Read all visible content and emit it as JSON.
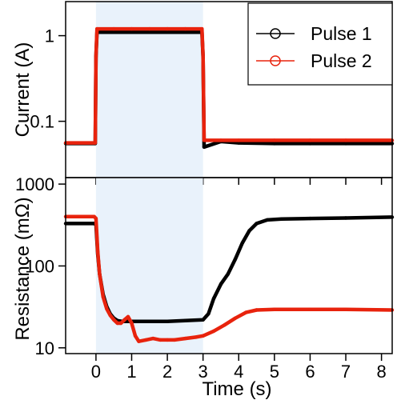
{
  "chart_data": [
    {
      "type": "line",
      "panel": "top",
      "xlabel": "",
      "ylabel": "Current (A)",
      "ylog": true,
      "ylim": [
        0.022,
        2.5
      ],
      "xlim": [
        -0.85,
        8.3
      ],
      "yticks": [
        {
          "v": 1,
          "label": "1"
        },
        {
          "v": 0.1,
          "label": "0.1"
        }
      ],
      "shaded_region": [
        0,
        3
      ],
      "shade_color": "#e9f2fb",
      "legend": {
        "position": "top-right",
        "entries": [
          "Pulse 1",
          "Pulse 2"
        ]
      },
      "series": [
        {
          "name": "Pulse 1",
          "color": "#000000",
          "points": [
            [
              -0.85,
              0.055
            ],
            [
              -0.02,
              0.055
            ],
            [
              0,
              0.57
            ],
            [
              0.03,
              1.1
            ],
            [
              0.5,
              1.1
            ],
            [
              1,
              1.1
            ],
            [
              1.5,
              1.1
            ],
            [
              2,
              1.1
            ],
            [
              2.5,
              1.1
            ],
            [
              2.97,
              1.1
            ],
            [
              3.0,
              0.57
            ],
            [
              3.03,
              0.05
            ],
            [
              3.5,
              0.058
            ],
            [
              4,
              0.056
            ],
            [
              5,
              0.055
            ],
            [
              6,
              0.055
            ],
            [
              7,
              0.055
            ],
            [
              8.3,
              0.055
            ]
          ]
        },
        {
          "name": "Pulse 2",
          "color": "#e8230d",
          "points": [
            [
              -0.85,
              0.056
            ],
            [
              -0.02,
              0.056
            ],
            [
              0,
              0.57
            ],
            [
              0.03,
              1.2
            ],
            [
              0.5,
              1.2
            ],
            [
              1,
              1.2
            ],
            [
              1.5,
              1.2
            ],
            [
              2,
              1.2
            ],
            [
              2.5,
              1.2
            ],
            [
              2.97,
              1.2
            ],
            [
              3.0,
              0.57
            ],
            [
              3.03,
              0.06
            ],
            [
              3.5,
              0.06
            ],
            [
              4,
              0.06
            ],
            [
              5,
              0.06
            ],
            [
              6,
              0.06
            ],
            [
              7,
              0.06
            ],
            [
              8.3,
              0.06
            ]
          ]
        }
      ]
    },
    {
      "type": "line",
      "panel": "bottom",
      "xlabel": "Time (s)",
      "ylabel": "Resistance (mΩ)",
      "ylog": true,
      "ylim": [
        8.5,
        1200
      ],
      "xlim": [
        -0.85,
        8.3
      ],
      "xticks": [
        0,
        1,
        2,
        3,
        4,
        5,
        6,
        7,
        8
      ],
      "yticks": [
        {
          "v": 1000,
          "label": "1000"
        },
        {
          "v": 100,
          "label": "100"
        },
        {
          "v": 10,
          "label": "10"
        }
      ],
      "shaded_region": [
        0,
        3
      ],
      "series": [
        {
          "name": "Pulse 1",
          "color": "#000000",
          "points": [
            [
              -0.85,
              330
            ],
            [
              -0.05,
              330
            ],
            [
              0,
              320
            ],
            [
              0.05,
              140
            ],
            [
              0.1,
              80
            ],
            [
              0.2,
              45
            ],
            [
              0.3,
              32
            ],
            [
              0.4,
              26
            ],
            [
              0.5,
              23
            ],
            [
              0.6,
              21.5
            ],
            [
              0.75,
              21
            ],
            [
              1,
              21
            ],
            [
              1.5,
              21
            ],
            [
              2,
              21
            ],
            [
              2.5,
              21.5
            ],
            [
              3,
              22
            ],
            [
              3.15,
              26
            ],
            [
              3.3,
              40
            ],
            [
              3.5,
              60
            ],
            [
              3.7,
              80
            ],
            [
              3.9,
              120
            ],
            [
              4.1,
              190
            ],
            [
              4.3,
              270
            ],
            [
              4.5,
              330
            ],
            [
              4.8,
              365
            ],
            [
              5.2,
              375
            ],
            [
              6,
              380
            ],
            [
              7,
              385
            ],
            [
              8.3,
              395
            ]
          ]
        },
        {
          "name": "Pulse 2",
          "color": "#e8230d",
          "points": [
            [
              -0.85,
              400
            ],
            [
              -0.05,
              400
            ],
            [
              0,
              380
            ],
            [
              0.05,
              150
            ],
            [
              0.1,
              80
            ],
            [
              0.2,
              42
            ],
            [
              0.3,
              30
            ],
            [
              0.4,
              25
            ],
            [
              0.5,
              22
            ],
            [
              0.6,
              20
            ],
            [
              0.7,
              20
            ],
            [
              0.8,
              22
            ],
            [
              0.9,
              24
            ],
            [
              1.0,
              20
            ],
            [
              1.1,
              14
            ],
            [
              1.2,
              12
            ],
            [
              1.4,
              12.5
            ],
            [
              1.6,
              13
            ],
            [
              1.8,
              12.5
            ],
            [
              2.0,
              12.5
            ],
            [
              2.2,
              12.5
            ],
            [
              2.5,
              13
            ],
            [
              2.8,
              13.5
            ],
            [
              3.0,
              14
            ],
            [
              3.3,
              16
            ],
            [
              3.6,
              19
            ],
            [
              3.9,
              23
            ],
            [
              4.2,
              27
            ],
            [
              4.5,
              29
            ],
            [
              5,
              29.5
            ],
            [
              6,
              29.5
            ],
            [
              7,
              29.5
            ],
            [
              8.3,
              29
            ]
          ]
        }
      ]
    }
  ]
}
